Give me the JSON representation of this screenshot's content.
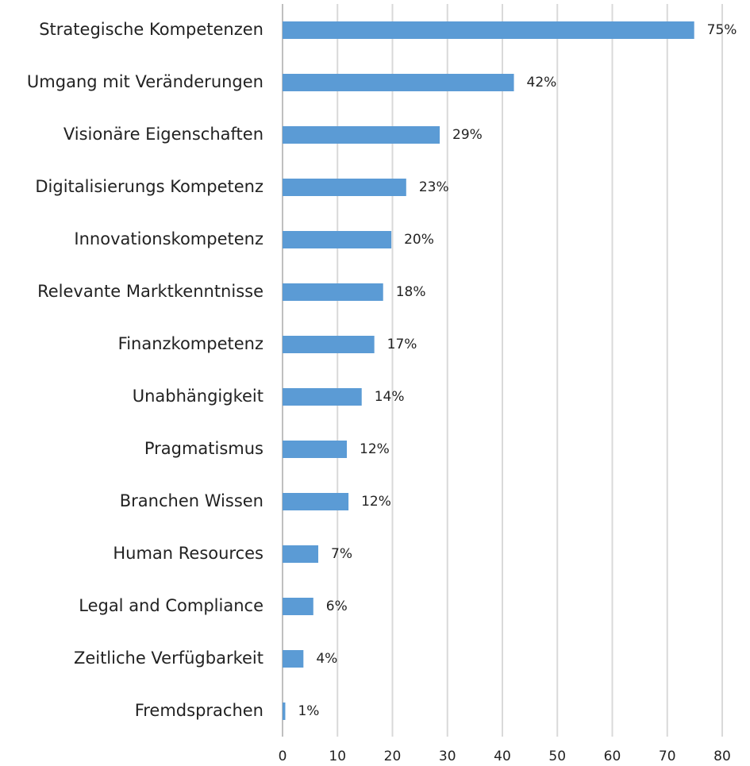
{
  "chart_data": {
    "type": "barh",
    "categories": [
      "Strategische Kompetenzen",
      "Umgang mit Veränderungen",
      "Visionäre Eigenschaften",
      "Digitalisierungs Kompetenz",
      "Innovationskompetenz",
      "Relevante Marktkenntnisse",
      "Finanzkompetenz",
      "Unabhängigkeit",
      "Pragmatismus",
      "Branchen Wissen",
      "Human Resources",
      "Legal and Compliance",
      "Zeitliche Verfügbarkeit",
      "Fremdsprachen"
    ],
    "values": [
      74.9,
      42.1,
      28.6,
      22.5,
      19.8,
      18.3,
      16.7,
      14.4,
      11.7,
      12.0,
      6.5,
      5.6,
      3.8,
      0.5
    ],
    "value_labels": [
      "75%",
      "42%",
      "29%",
      "23%",
      "20%",
      "18%",
      "17%",
      "14%",
      "12%",
      "12%",
      "7%",
      "6%",
      "4%",
      "1%"
    ],
    "color": "#5b9bd5",
    "xlim": [
      0,
      80
    ],
    "xticks": [
      0,
      10,
      20,
      30,
      40,
      50,
      60,
      70,
      80
    ],
    "grid": true
  }
}
